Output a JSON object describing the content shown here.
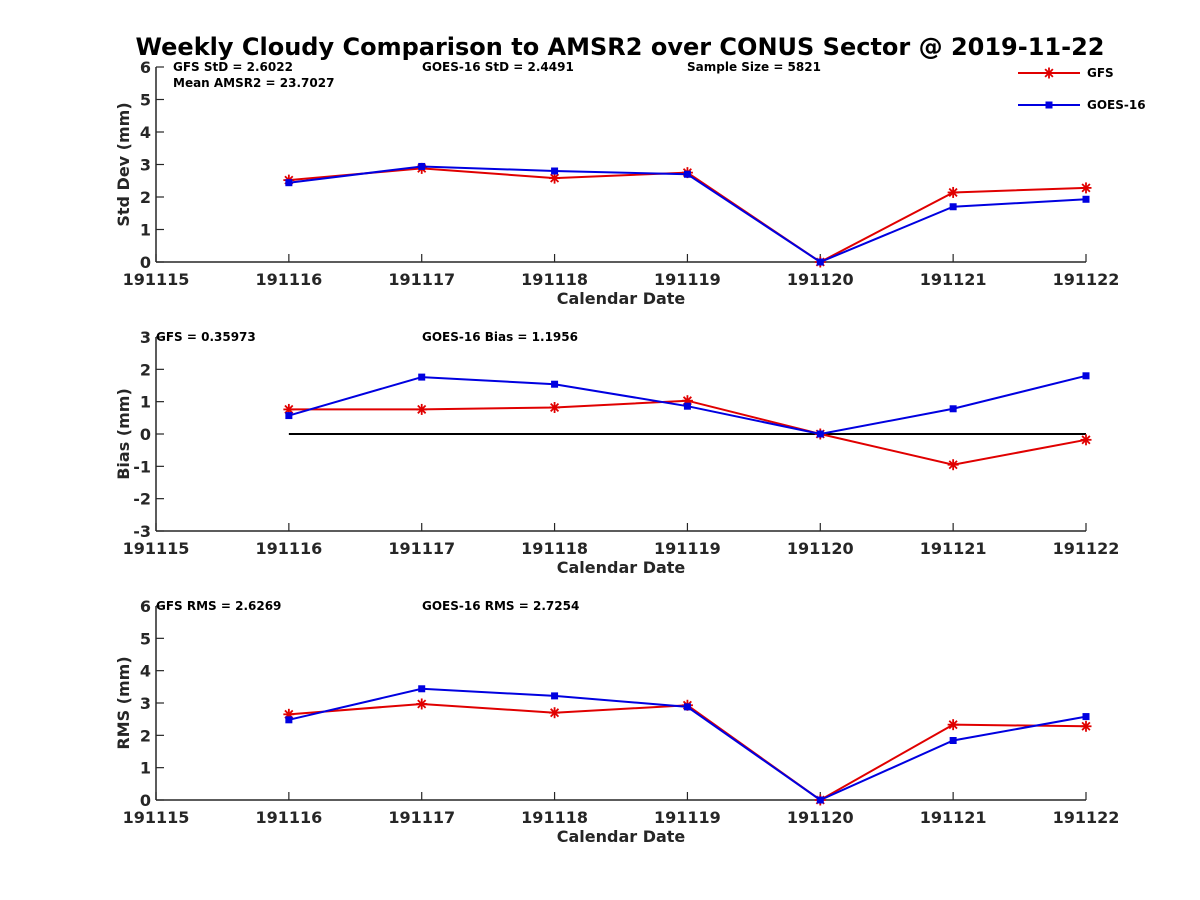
{
  "title": "Weekly Cloudy Comparison to AMSR2 over CONUS Sector @ 2019-11-22",
  "legend": [
    {
      "name": "GFS",
      "color": "#e00000",
      "marker": "asterisk"
    },
    {
      "name": "GOES-16",
      "color": "#0000e0",
      "marker": "square"
    }
  ],
  "chart_data": [
    {
      "type": "line",
      "xlabel": "Calendar Date",
      "ylabel": "Std Dev (mm)",
      "categories": [
        "191115",
        "191116",
        "191117",
        "191118",
        "191119",
        "191120",
        "191121",
        "191122"
      ],
      "ylim": [
        0,
        6
      ],
      "yticks": [
        "0",
        "1",
        "2",
        "3",
        "4",
        "5",
        "6"
      ],
      "stats": [
        "GFS StD = 2.6022",
        "Mean AMSR2 = 23.7027",
        "GOES-16 StD = 2.4491",
        "Sample Size = 5821"
      ],
      "zero_line": false,
      "series": [
        {
          "name": "GFS",
          "color": "#e00000",
          "marker": "asterisk",
          "x": [
            1,
            2,
            3,
            4,
            5,
            6,
            7
          ],
          "values": [
            2.52,
            2.88,
            2.58,
            2.75,
            0.0,
            2.14,
            2.28
          ]
        },
        {
          "name": "GOES-16",
          "color": "#0000e0",
          "marker": "square",
          "x": [
            1,
            2,
            3,
            4,
            5,
            6,
            7
          ],
          "values": [
            2.44,
            2.94,
            2.8,
            2.7,
            0.0,
            1.7,
            1.93
          ]
        }
      ]
    },
    {
      "type": "line",
      "xlabel": "Calendar Date",
      "ylabel": "Bias (mm)",
      "categories": [
        "191115",
        "191116",
        "191117",
        "191118",
        "191119",
        "191120",
        "191121",
        "191122"
      ],
      "ylim": [
        -3,
        3
      ],
      "yticks": [
        "-3",
        "-2",
        "-1",
        "0",
        "1",
        "2",
        "3"
      ],
      "stats": [
        "GFS = 0.35973",
        "GOES-16 Bias  = 1.1956"
      ],
      "zero_line": true,
      "series": [
        {
          "name": "GFS",
          "color": "#e00000",
          "marker": "asterisk",
          "x": [
            1,
            2,
            3,
            4,
            5,
            6,
            7
          ],
          "values": [
            0.76,
            0.76,
            0.82,
            1.03,
            0.0,
            -0.95,
            -0.18
          ]
        },
        {
          "name": "GOES-16",
          "color": "#0000e0",
          "marker": "square",
          "x": [
            1,
            2,
            3,
            4,
            5,
            6,
            7
          ],
          "values": [
            0.57,
            1.76,
            1.54,
            0.86,
            0.0,
            0.78,
            1.8
          ]
        }
      ]
    },
    {
      "type": "line",
      "xlabel": "Calendar Date",
      "ylabel": "RMS (mm)",
      "categories": [
        "191115",
        "191116",
        "191117",
        "191118",
        "191119",
        "191120",
        "191121",
        "191122"
      ],
      "ylim": [
        0,
        6
      ],
      "yticks": [
        "0",
        "1",
        "2",
        "3",
        "4",
        "5",
        "6"
      ],
      "stats": [
        "GFS RMS = 2.6269",
        "GOES-16 RMS = 2.7254"
      ],
      "zero_line": false,
      "series": [
        {
          "name": "GFS",
          "color": "#e00000",
          "marker": "asterisk",
          "x": [
            1,
            2,
            3,
            4,
            5,
            6,
            7
          ],
          "values": [
            2.65,
            2.97,
            2.7,
            2.93,
            0.0,
            2.33,
            2.28
          ]
        },
        {
          "name": "GOES-16",
          "color": "#0000e0",
          "marker": "square",
          "x": [
            1,
            2,
            3,
            4,
            5,
            6,
            7
          ],
          "values": [
            2.48,
            3.44,
            3.22,
            2.88,
            0.0,
            1.84,
            2.58
          ]
        }
      ]
    }
  ]
}
